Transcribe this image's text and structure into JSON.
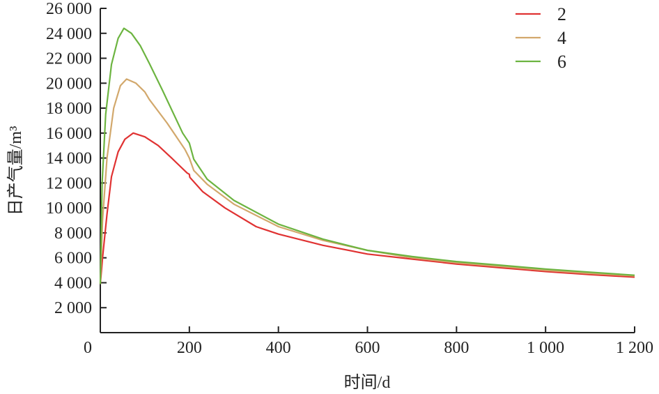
{
  "chart_data": {
    "type": "line",
    "title": "",
    "xlabel": "时间/d",
    "ylabel": "日产气量/m³",
    "xlim": [
      0,
      1200
    ],
    "ylim": [
      0,
      26000
    ],
    "xticks": [
      0,
      200,
      400,
      600,
      800,
      1000,
      1200
    ],
    "xtick_labels": [
      "0",
      "200",
      "400",
      "600",
      "800",
      "1 000",
      "1 200"
    ],
    "yticks": [
      2000,
      4000,
      6000,
      8000,
      10000,
      12000,
      14000,
      16000,
      18000,
      20000,
      22000,
      24000,
      26000
    ],
    "ytick_labels": [
      "2 000",
      "4 000",
      "6 000",
      "8 000",
      "10 000",
      "12 000",
      "14 000",
      "16 000",
      "18 000",
      "20 000",
      "22 000",
      "24 000",
      "26 000"
    ],
    "grid": false,
    "legend_position": "top-right",
    "series": [
      {
        "name": "2",
        "color": "#e03232",
        "x": [
          0,
          5,
          15,
          25,
          40,
          55,
          74,
          100,
          130,
          160,
          195,
          200,
          201,
          230,
          280,
          350,
          400,
          500,
          600,
          700,
          800,
          900,
          1000,
          1100,
          1200
        ],
        "y": [
          3900,
          6000,
          9500,
          12500,
          14500,
          15500,
          16000,
          15700,
          15000,
          14000,
          12800,
          12700,
          12450,
          11300,
          10000,
          8500,
          7900,
          7000,
          6300,
          5900,
          5500,
          5200,
          4900,
          4650,
          4450
        ]
      },
      {
        "name": "4",
        "color": "#d2a86c",
        "x": [
          0,
          5,
          15,
          30,
          45,
          59,
          80,
          100,
          110,
          150,
          190,
          200,
          210,
          240,
          300,
          400,
          500,
          600,
          700,
          800,
          900,
          1000,
          1100,
          1200
        ],
        "y": [
          3900,
          9000,
          14000,
          18000,
          19800,
          20330,
          20000,
          19300,
          18700,
          16800,
          14700,
          14000,
          13000,
          11900,
          10300,
          8500,
          7400,
          6600,
          6000,
          5600,
          5300,
          5000,
          4750,
          4550
        ]
      },
      {
        "name": "6",
        "color": "#6cb440",
        "x": [
          0,
          4,
          12,
          25,
          40,
          53,
          70,
          90,
          110,
          140,
          185,
          200,
          210,
          240,
          300,
          400,
          500,
          600,
          700,
          800,
          900,
          1000,
          1100,
          1200
        ],
        "y": [
          3900,
          12000,
          17500,
          21500,
          23600,
          24400,
          24000,
          23000,
          21600,
          19400,
          16000,
          15200,
          13900,
          12300,
          10600,
          8700,
          7500,
          6600,
          6100,
          5700,
          5400,
          5100,
          4850,
          4600
        ]
      }
    ]
  }
}
